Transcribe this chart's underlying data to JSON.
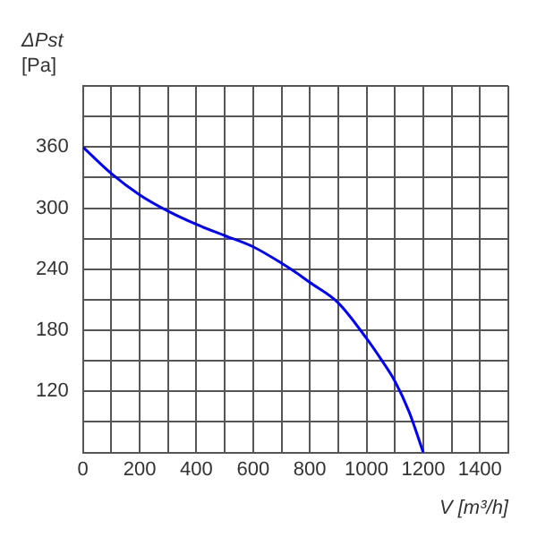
{
  "chart_data": {
    "type": "line",
    "ylabel": "ΔPst [Pa]",
    "xlabel": "V [m³/h]",
    "x": [
      0,
      100,
      200,
      300,
      400,
      500,
      600,
      700,
      750,
      800,
      900,
      1000,
      1050,
      1100,
      1150,
      1200
    ],
    "series": [
      {
        "color": "#0000ff",
        "values": [
          360,
          334,
          313,
          297,
          284,
          273,
          262,
          246,
          237,
          227,
          207,
          172,
          152,
          130,
          100,
          60
        ]
      }
    ],
    "xlim": [
      0,
      1500
    ],
    "xticks": [
      0,
      {
        "value": 100,
        "label": null
      },
      200,
      {
        "value": 300,
        "label": null
      },
      400,
      {
        "value": 500,
        "label": null
      },
      600,
      {
        "value": 700,
        "label": null
      },
      800,
      {
        "value": 900,
        "label": null
      },
      1000,
      {
        "value": 1100,
        "label": null
      },
      1200,
      {
        "value": 1300,
        "label": null
      },
      1400,
      {
        "value": 1500,
        "label": null
      }
    ],
    "ylim": [
      60,
      420
    ],
    "yticks": [
      {
        "value": 60,
        "label": null
      },
      {
        "value": 90,
        "label": null
      },
      120,
      {
        "value": 150,
        "label": null
      },
      180,
      {
        "value": 210,
        "label": null
      },
      240,
      {
        "value": 270,
        "label": null
      },
      300,
      {
        "value": 330,
        "label": null
      },
      360,
      {
        "value": 390,
        "label": null
      },
      {
        "value": 420,
        "label": null
      }
    ],
    "grid": true,
    "legend": false,
    "marker": "none",
    "line_style": "solid"
  }
}
